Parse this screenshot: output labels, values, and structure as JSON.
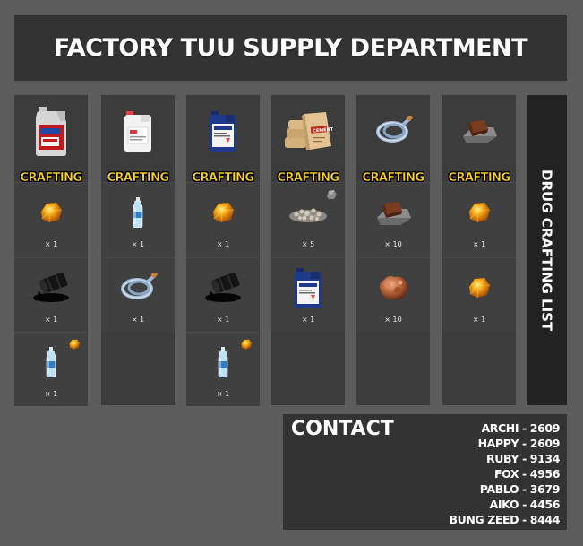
{
  "title": "FACTORY TUU SUPPLY DEPARTMENT",
  "side_title": "DRUG CRAFTING LIST",
  "columns": [
    {
      "product_icon": "chemical-jug-icon",
      "button_label": "CRAFTING",
      "ingredients": [
        {
          "icon": "amber-gem-icon",
          "qty": "× 1"
        },
        {
          "icon": "oil-barrel-icon",
          "qty": "× 1"
        },
        {
          "icon": "water-bottle-icon",
          "qty": "× 1",
          "extra_icon": "amber-gem-icon"
        }
      ]
    },
    {
      "product_icon": "white-canister-icon",
      "button_label": "CRAFTING",
      "ingredients": [
        {
          "icon": "water-bottle-icon",
          "qty": "× 1"
        },
        {
          "icon": "hose-icon",
          "qty": "× 1"
        }
      ]
    },
    {
      "product_icon": "blue-canister-icon",
      "button_label": "CRAFTING",
      "ingredients": [
        {
          "icon": "amber-gem-icon",
          "qty": "× 1"
        },
        {
          "icon": "oil-barrel-icon",
          "qty": "× 1"
        },
        {
          "icon": "water-bottle-icon",
          "qty": "× 1",
          "extra_icon": "amber-gem-icon"
        }
      ]
    },
    {
      "product_icon": "cement-bags-icon",
      "button_label": "CRAFTING",
      "ingredients": [
        {
          "icon": "gravel-icon",
          "qty": "× 5",
          "extra_icon": "rock-icon"
        },
        {
          "icon": "blue-canister-icon",
          "qty": "× 1"
        }
      ]
    },
    {
      "product_icon": "hose-icon",
      "button_label": "CRAFTING",
      "ingredients": [
        {
          "icon": "brick-stone-icon",
          "qty": "× 10"
        },
        {
          "icon": "copper-ore-icon",
          "qty": "× 10"
        }
      ]
    },
    {
      "product_icon": "brick-stone-icon",
      "button_label": "CRAFTING",
      "ingredients": [
        {
          "icon": "amber-gem-icon",
          "qty": "× 1"
        },
        {
          "icon": "amber-gem-icon",
          "qty": "× 1"
        }
      ]
    }
  ],
  "contact": {
    "title": "CONTACT",
    "entries": [
      "ARCHI - 2609",
      "HAPPY - 2609",
      "RUBY - 9134",
      "FOX - 4956",
      "PABLO - 3679",
      "AIKO - 4456",
      "BUNG ZEED - 8444"
    ]
  },
  "colors": {
    "background": "#5c5c5c",
    "panel": "#333333",
    "column": "#3c3c3c",
    "crafting_text": "#ffd41f",
    "text": "#ffffff"
  }
}
